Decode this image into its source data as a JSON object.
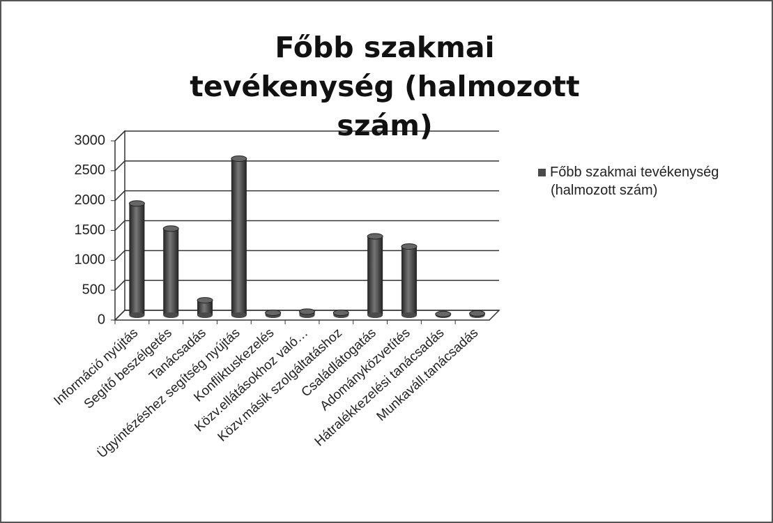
{
  "chart_data": {
    "type": "bar3d",
    "title": "Főbb szakmai tevékenység (halmozott szám)",
    "categories": [
      "Információ nyújtás",
      "Segítő beszélgetés",
      "Tanácsadás",
      "Ügyintézéshez segítség nyújtás",
      "Konfliktuskezelés",
      "Közv.ellátásokhoz való…",
      "Közv.másik szolgáltatáshoz",
      "Családlátogatás",
      "Adományközvetítés",
      "Hátralékkezelési tanácsadás",
      "Munkaváll.tanácsadás"
    ],
    "series": [
      {
        "name": "Főbb szakmai tevékenység (halmozott szám)",
        "color": "#4a4a4a",
        "values": [
          1870,
          1450,
          250,
          2620,
          40,
          60,
          40,
          1320,
          1150,
          20,
          30
        ]
      }
    ],
    "ylim": [
      0,
      3000
    ],
    "yticks": [
      0,
      500,
      1000,
      1500,
      2000,
      2500,
      3000
    ],
    "grid": true,
    "legend": "right"
  }
}
